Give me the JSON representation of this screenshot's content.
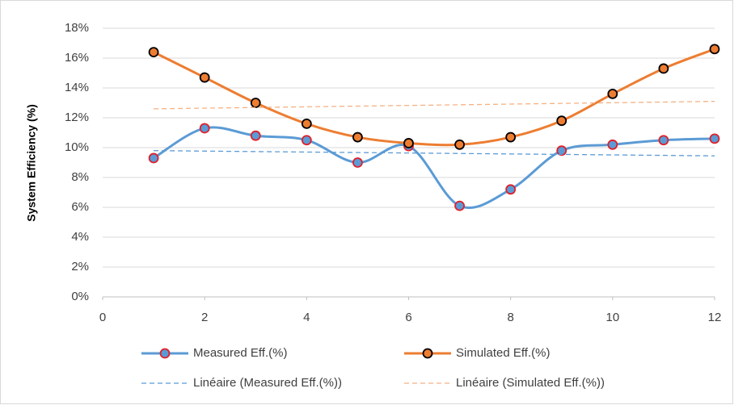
{
  "chart_data": {
    "type": "scatter",
    "smooth": true,
    "y_label": "System Efficiency (%)",
    "xlim": [
      0,
      12
    ],
    "xticks": [
      0,
      2,
      4,
      6,
      8,
      10,
      12
    ],
    "ylim": [
      0,
      18
    ],
    "yticks": [
      {
        "value": 0,
        "label": "0%"
      },
      {
        "value": 2,
        "label": "2%"
      },
      {
        "value": 4,
        "label": "4%"
      },
      {
        "value": 6,
        "label": "6%"
      },
      {
        "value": 8,
        "label": "8%"
      },
      {
        "value": 10,
        "label": "10%"
      },
      {
        "value": 12,
        "label": "12%"
      },
      {
        "value": 14,
        "label": "14%"
      },
      {
        "value": 16,
        "label": "16%"
      },
      {
        "value": 18,
        "label": "18%"
      }
    ],
    "grid": true,
    "series": [
      {
        "name": "Measured Eff.(%)",
        "color": "#5b9bd5",
        "marker_edge": "#e0202a",
        "x": [
          1,
          2,
          3,
          4,
          5,
          6,
          7,
          8,
          9,
          10,
          11,
          12
        ],
        "values": [
          9.3,
          11.3,
          10.8,
          10.5,
          9.0,
          10.1,
          6.1,
          7.2,
          9.8,
          10.2,
          10.5,
          10.6
        ]
      },
      {
        "name": "Simulated Eff.(%)",
        "color": "#ed7d31",
        "marker_edge": "#000000",
        "x": [
          1,
          2,
          3,
          4,
          5,
          6,
          7,
          8,
          9,
          10,
          11,
          12
        ],
        "values": [
          16.4,
          14.7,
          13.0,
          11.6,
          10.7,
          10.3,
          10.2,
          10.7,
          11.8,
          13.6,
          15.3,
          16.6
        ]
      },
      {
        "name": "Linéaire (Measured Eff.(%))",
        "color": "#5b9bd5",
        "dashed": true,
        "x": [
          1,
          12
        ],
        "values": [
          9.8,
          9.45
        ]
      },
      {
        "name": "Linéaire (Simulated Eff.(%))",
        "color": "#f4b183",
        "dashed": true,
        "x": [
          1,
          12
        ],
        "values": [
          12.6,
          13.1
        ]
      }
    ]
  }
}
